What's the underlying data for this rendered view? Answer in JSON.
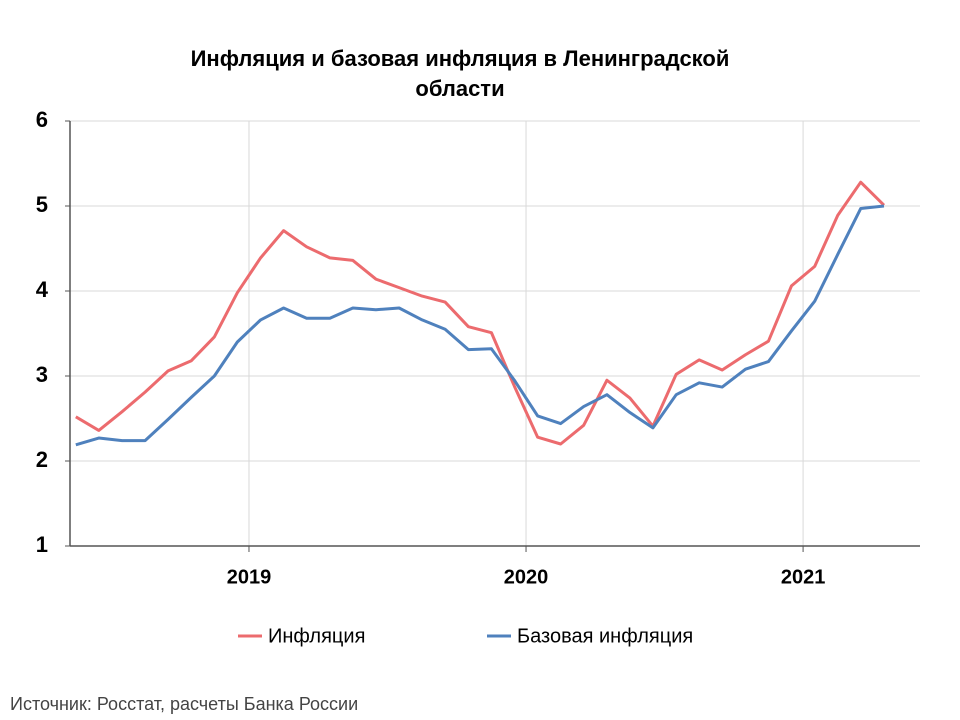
{
  "chart_data": {
    "type": "line",
    "title": [
      "Инфляция и базовая инфляция в Ленинградской",
      "области"
    ],
    "x": [
      2018.375,
      2018.458,
      2018.542,
      2018.625,
      2018.708,
      2018.792,
      2018.875,
      2018.958,
      2019.042,
      2019.125,
      2019.208,
      2019.292,
      2019.375,
      2019.458,
      2019.542,
      2019.625,
      2019.708,
      2019.792,
      2019.875,
      2019.958,
      2020.042,
      2020.125,
      2020.208,
      2020.292,
      2020.375,
      2020.458,
      2020.542,
      2020.625,
      2020.708,
      2020.792,
      2020.875,
      2020.958,
      2021.042,
      2021.125,
      2021.208,
      2021.292
    ],
    "series": [
      {
        "name": "Инфляция",
        "color": "#ec6b6e",
        "values": [
          2.52,
          2.36,
          2.58,
          2.81,
          3.06,
          3.18,
          3.46,
          3.98,
          4.39,
          4.71,
          4.52,
          4.39,
          4.36,
          4.14,
          4.04,
          3.94,
          3.87,
          3.58,
          3.51,
          2.88,
          2.28,
          2.2,
          2.42,
          2.95,
          2.74,
          2.41,
          3.02,
          3.19,
          3.07,
          3.25,
          3.41,
          4.06,
          4.29,
          4.89,
          5.28,
          5.01
        ]
      },
      {
        "name": "Базовая инфляция",
        "color": "#4f81bd",
        "values": [
          2.19,
          2.27,
          2.24,
          2.24,
          2.49,
          2.75,
          3.0,
          3.4,
          3.66,
          3.8,
          3.68,
          3.68,
          3.8,
          3.78,
          3.8,
          3.66,
          3.55,
          3.31,
          3.32,
          2.95,
          2.53,
          2.44,
          2.64,
          2.78,
          2.57,
          2.39,
          2.78,
          2.92,
          2.87,
          3.08,
          3.17,
          3.53,
          3.88,
          4.43,
          4.97,
          5.0
        ]
      }
    ],
    "xlim": [
      2018.354,
      2021.422
    ],
    "xticks": [
      2019,
      2020,
      2021
    ],
    "ylim": [
      1,
      6
    ],
    "yticks": [
      1,
      2,
      3,
      4,
      5,
      6
    ],
    "grid": true,
    "legend": "bottom",
    "source": "Источник: Росстат, расчеты Банка России"
  }
}
